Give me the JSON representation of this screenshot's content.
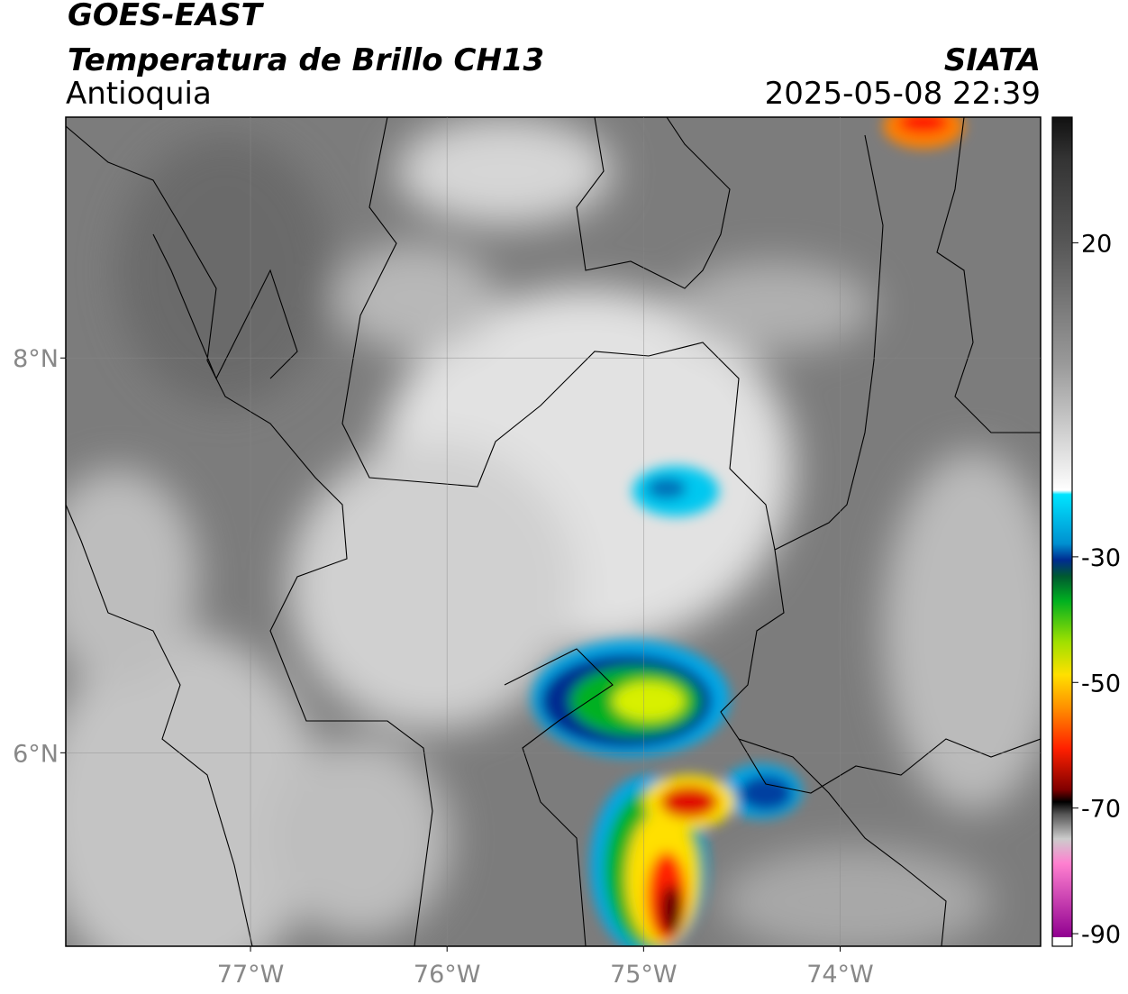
{
  "header": {
    "title": "GOES-EAST",
    "subtitle": "Temperatura de Brillo CH13",
    "region": "Antioquia",
    "source": "SIATA",
    "timestamp": "2025-05-08 22:39"
  },
  "map": {
    "xlim": [
      -77.94,
      -72.98
    ],
    "ylim": [
      5.02,
      9.22
    ],
    "xticks": [
      {
        "value": -77,
        "label": "77°W"
      },
      {
        "value": -76,
        "label": "76°W"
      },
      {
        "value": -75,
        "label": "75°W"
      },
      {
        "value": -74,
        "label": "74°W"
      }
    ],
    "yticks": [
      {
        "value": 8,
        "label": "8°N"
      },
      {
        "value": 6,
        "label": "6°N"
      }
    ],
    "grid": true
  },
  "colorbar": {
    "lim": [
      -92,
      40
    ],
    "ticks": [
      20,
      -30,
      -50,
      -70,
      -90
    ]
  }
}
